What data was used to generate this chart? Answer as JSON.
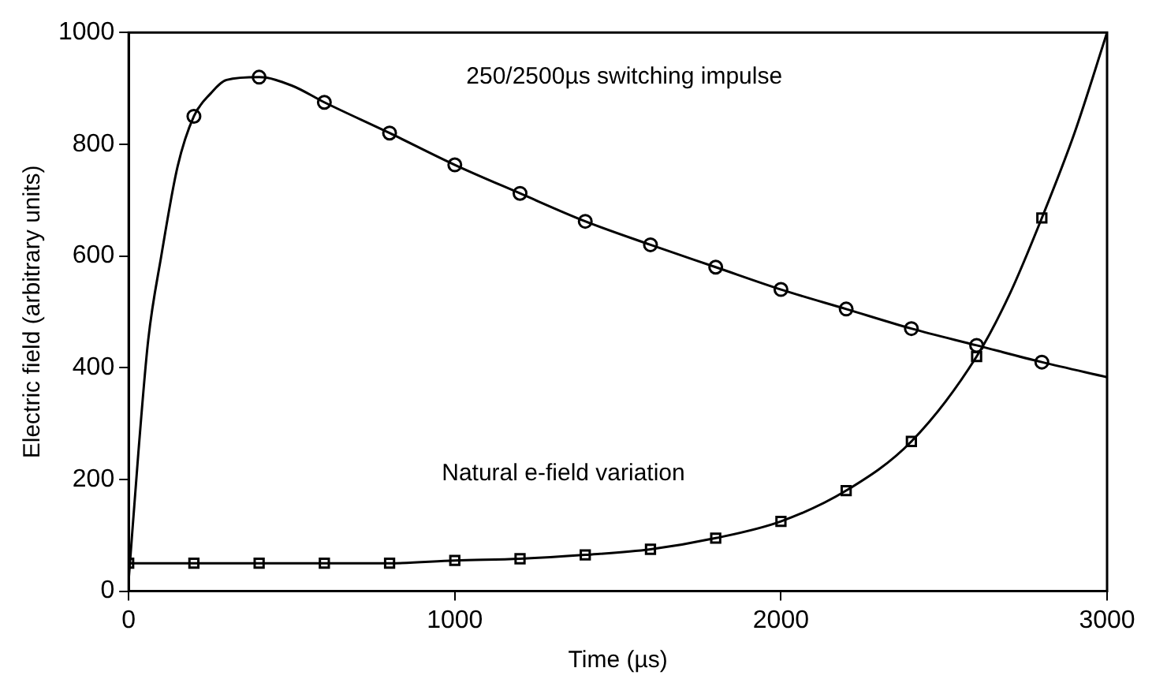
{
  "chart_data": {
    "type": "line",
    "xlabel": "Time (µs)",
    "ylabel": "Electric field (arbitrary units)",
    "xlim": [
      0,
      3000
    ],
    "xticks": [
      0,
      1000,
      2000,
      3000
    ],
    "ylim": [
      0,
      1000
    ],
    "yticks": [
      0,
      200,
      400,
      600,
      800,
      1000
    ],
    "grid": false,
    "legend": false,
    "line_style": "solid",
    "series": [
      {
        "type": "line",
        "marker": "none",
        "color": "#000000",
        "x": [
          0,
          30,
          60,
          100,
          150,
          200,
          250,
          300,
          400,
          500,
          600,
          800,
          1000,
          1200,
          1400,
          1600,
          1800,
          2000,
          2200,
          2400,
          2600,
          2800,
          3000
        ],
        "values": [
          20,
          250,
          450,
          600,
          760,
          850,
          890,
          915,
          920,
          905,
          875,
          820,
          763,
          712,
          662,
          620,
          580,
          540,
          505,
          470,
          440,
          410,
          383
        ]
      },
      {
        "type": "scatter",
        "marker": "circle",
        "color": "#000000",
        "x": [
          200,
          400,
          600,
          800,
          1000,
          1200,
          1400,
          1600,
          1800,
          2000,
          2200,
          2400,
          2600,
          2800
        ],
        "values": [
          850,
          920,
          875,
          820,
          763,
          712,
          662,
          620,
          580,
          540,
          505,
          470,
          440,
          410
        ]
      },
      {
        "type": "line",
        "marker": "none",
        "color": "#000000",
        "x": [
          0,
          200,
          400,
          600,
          800,
          1000,
          1200,
          1400,
          1600,
          1800,
          2000,
          2200,
          2400,
          2600,
          2700,
          2800,
          2900,
          3000
        ],
        "values": [
          50,
          50,
          50,
          50,
          50,
          55,
          58,
          65,
          75,
          95,
          125,
          180,
          268,
          420,
          530,
          668,
          820,
          1000
        ]
      },
      {
        "type": "scatter",
        "marker": "square",
        "color": "#000000",
        "x": [
          0,
          200,
          400,
          600,
          800,
          1000,
          1200,
          1400,
          1600,
          1800,
          2000,
          2200,
          2400,
          2600,
          2800
        ],
        "values": [
          50,
          50,
          50,
          50,
          50,
          55,
          58,
          65,
          75,
          95,
          125,
          180,
          268,
          420,
          668
        ]
      }
    ],
    "annotations": [
      "250/2500µs switching impulse",
      "Natural e-field variation"
    ]
  }
}
